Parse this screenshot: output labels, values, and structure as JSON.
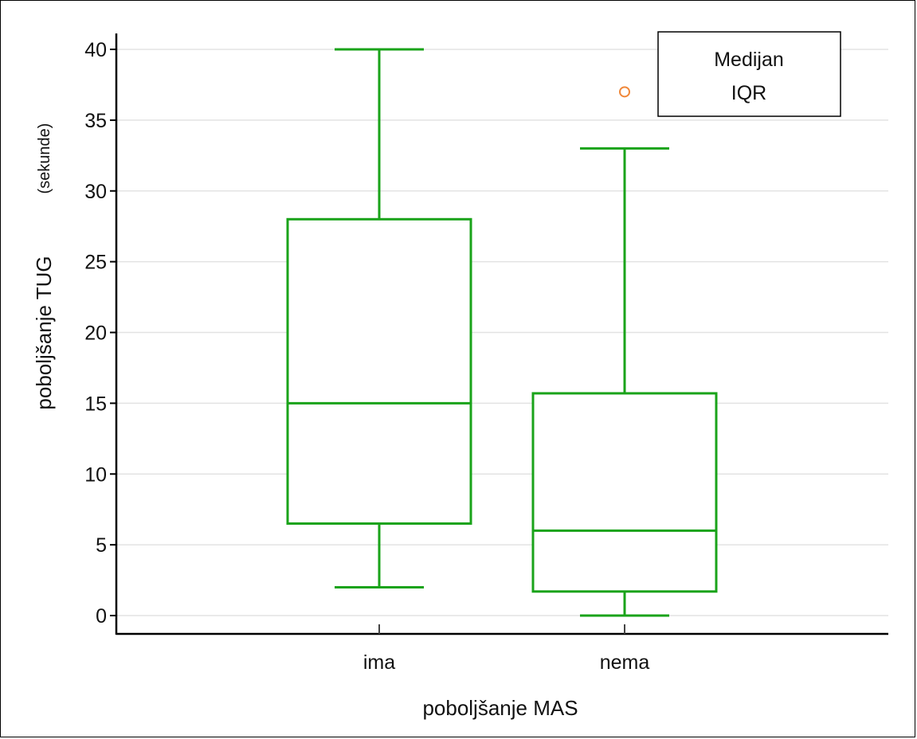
{
  "chart_data": {
    "type": "boxplot",
    "xlabel": "poboljšanje MAS",
    "ylabel": "poboljšanje TUG",
    "ylabel_unit": "(sekunde)",
    "categories": [
      "ima",
      "nema"
    ],
    "ylim": [
      0,
      40
    ],
    "yticks": [
      0,
      5,
      10,
      15,
      20,
      25,
      30,
      35,
      40
    ],
    "grid": "horizontal",
    "box_color": "#1aa31a",
    "outlier_color": "#f0883a",
    "boxes": [
      {
        "category": "ima",
        "whisker_low": 2,
        "q1": 6.5,
        "median": 15,
        "q3": 28,
        "whisker_high": 40,
        "outliers": []
      },
      {
        "category": "nema",
        "whisker_low": 0,
        "q1": 1.7,
        "median": 6,
        "q3": 15.7,
        "whisker_high": 33,
        "outliers": [
          37
        ]
      }
    ],
    "legend": {
      "position": "top-right",
      "entries": [
        "Medijan",
        "IQR"
      ]
    }
  }
}
